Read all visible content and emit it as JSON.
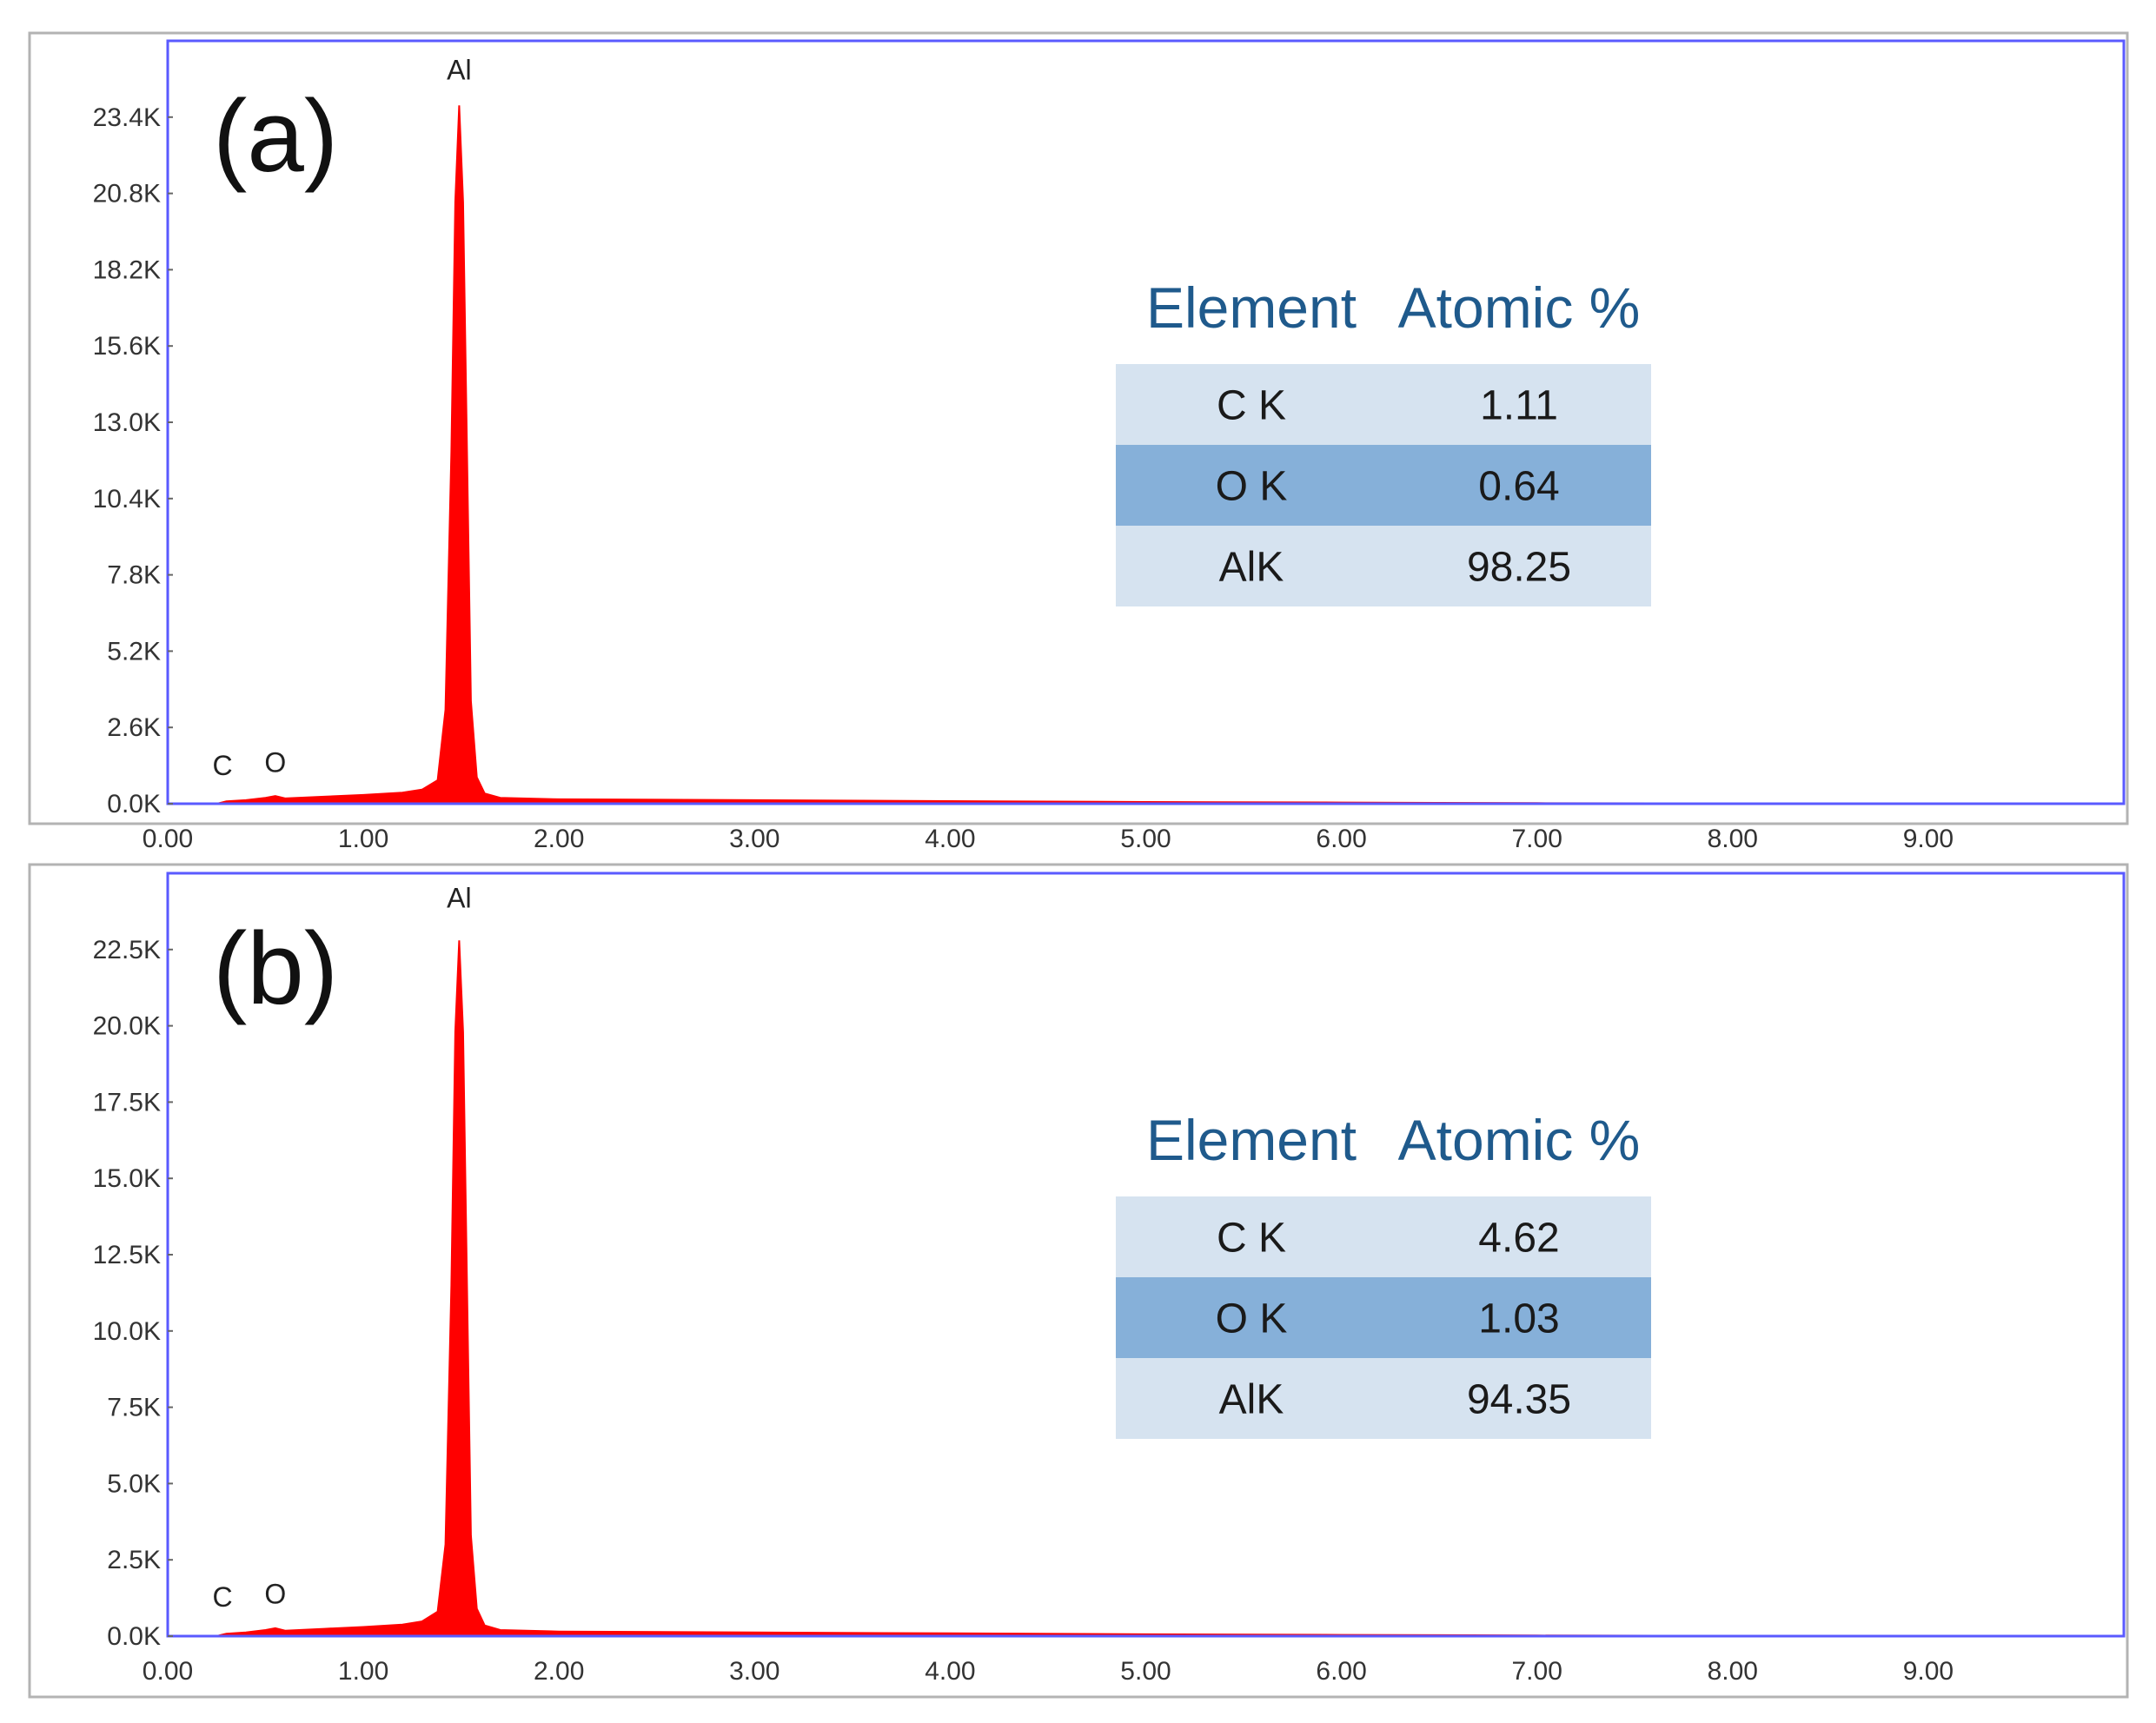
{
  "colors": {
    "spectrum": "#ff0000",
    "plot_border": "#5a5aff",
    "panel_border": "#b3b3b3",
    "table_light": "#d6e3f0",
    "table_dark": "#86b0d9",
    "table_header": "#1f5a8c"
  },
  "chart_data": [
    {
      "type": "area",
      "panel_label": "(a)",
      "x_ticks": [
        "0.00",
        "1.00",
        "2.00",
        "3.00",
        "4.00",
        "5.00",
        "6.00",
        "7.00",
        "8.00",
        "9.00"
      ],
      "xlim": [
        0,
        10
      ],
      "y_ticks": [
        "0.0K",
        "2.6K",
        "5.2K",
        "7.8K",
        "10.4K",
        "13.0K",
        "15.6K",
        "18.2K",
        "20.8K",
        "23.4K"
      ],
      "ylim": [
        0,
        26000
      ],
      "peak_labels": [
        {
          "text": "C",
          "x": 0.28,
          "y": 800
        },
        {
          "text": "O",
          "x": 0.55,
          "y": 900
        },
        {
          "text": "Al",
          "x": 1.49,
          "y": 24500
        }
      ],
      "series": [
        {
          "x": [
            0.25,
            0.3,
            0.4,
            0.5,
            0.55,
            0.6,
            0.8,
            1.0,
            1.2,
            1.3,
            1.38,
            1.42,
            1.45,
            1.47,
            1.49,
            1.51,
            1.53,
            1.55,
            1.58,
            1.62,
            1.7,
            2.0,
            3.0,
            4.0,
            5.0,
            6.0,
            6.5,
            7.0,
            8.0,
            9.0,
            9.9
          ],
          "y": [
            0,
            80,
            120,
            200,
            260,
            180,
            240,
            300,
            380,
            480,
            800,
            3200,
            12000,
            20500,
            23800,
            20500,
            12000,
            3500,
            900,
            350,
            200,
            150,
            120,
            90,
            60,
            40,
            30,
            20,
            10,
            5,
            0
          ]
        }
      ],
      "table": {
        "headers": [
          "Element",
          "Atomic %"
        ],
        "rows": [
          [
            "C K",
            "1.11"
          ],
          [
            "O K",
            "0.64"
          ],
          [
            "AlK",
            "98.25"
          ]
        ]
      }
    },
    {
      "type": "area",
      "panel_label": "(b)",
      "x_ticks": [
        "0.00",
        "1.00",
        "2.00",
        "3.00",
        "4.00",
        "5.00",
        "6.00",
        "7.00",
        "8.00",
        "9.00"
      ],
      "xlim": [
        0,
        10
      ],
      "y_ticks": [
        "0.0K",
        "2.5K",
        "5.0K",
        "7.5K",
        "10.0K",
        "12.5K",
        "15.0K",
        "17.5K",
        "20.0K",
        "22.5K"
      ],
      "ylim": [
        0,
        25000
      ],
      "peak_labels": [
        {
          "text": "C",
          "x": 0.28,
          "y": 800
        },
        {
          "text": "O",
          "x": 0.55,
          "y": 900
        },
        {
          "text": "Al",
          "x": 1.49,
          "y": 23700
        }
      ],
      "series": [
        {
          "x": [
            0.25,
            0.3,
            0.4,
            0.5,
            0.55,
            0.6,
            0.8,
            1.0,
            1.2,
            1.3,
            1.38,
            1.42,
            1.45,
            1.47,
            1.49,
            1.51,
            1.53,
            1.55,
            1.58,
            1.62,
            1.7,
            2.0,
            3.0,
            4.0,
            5.0,
            6.0,
            6.5,
            7.0,
            8.0,
            9.0,
            9.9
          ],
          "y": [
            0,
            80,
            120,
            200,
            260,
            180,
            240,
            300,
            380,
            480,
            800,
            3000,
            11500,
            19800,
            22800,
            19800,
            11500,
            3300,
            900,
            350,
            200,
            150,
            120,
            90,
            60,
            40,
            30,
            20,
            10,
            5,
            0
          ]
        }
      ],
      "table": {
        "headers": [
          "Element",
          "Atomic %"
        ],
        "rows": [
          [
            "C K",
            "4.62"
          ],
          [
            "O K",
            "1.03"
          ],
          [
            "AlK",
            "94.35"
          ]
        ]
      }
    }
  ]
}
